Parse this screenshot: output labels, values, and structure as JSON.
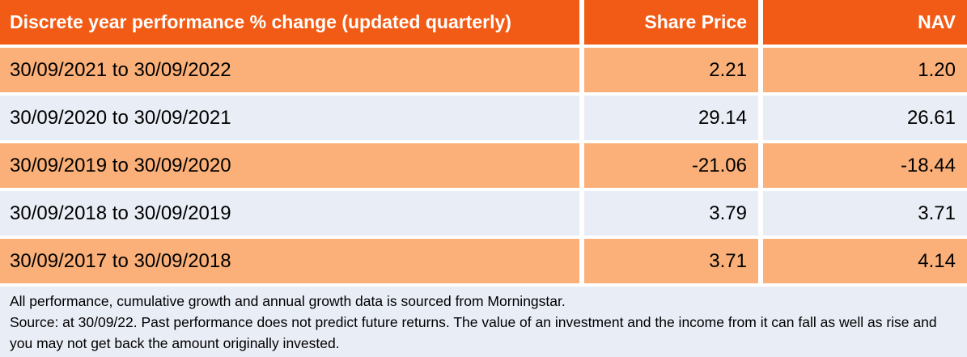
{
  "table": {
    "title": "Discrete year performance % change (updated quarterly)",
    "columns": {
      "share_price": "Share Price",
      "nav": "NAV"
    },
    "rows": [
      {
        "period": "30/09/2021 to 30/09/2022",
        "share_price": "2.21",
        "nav": "1.20"
      },
      {
        "period": "30/09/2020 to 30/09/2021",
        "share_price": "29.14",
        "nav": "26.61"
      },
      {
        "period": "30/09/2019 to 30/09/2020",
        "share_price": "-21.06",
        "nav": "-18.44"
      },
      {
        "period": "30/09/2018 to 30/09/2019",
        "share_price": "3.79",
        "nav": "3.71"
      },
      {
        "period": "30/09/2017 to 30/09/2018",
        "share_price": "3.71",
        "nav": "4.14"
      }
    ]
  },
  "footnote": {
    "line1": "All performance, cumulative growth and annual growth data is sourced from Morningstar.",
    "line2": "Source: at 30/09/22. Past performance does not predict future returns. The value of an investment and the income from it can fall as well as rise and you may not get back the amount originally invested."
  },
  "colors": {
    "header_bg": "#F25B15",
    "row_orange_bg": "#FAB078",
    "row_lavender_bg": "#E9EDF6",
    "header_text": "#FFFFFF",
    "body_text": "#000000"
  },
  "chart_data": {
    "type": "table",
    "title": "Discrete year performance % change (updated quarterly)",
    "columns": [
      "Discrete year performance % change (updated quarterly)",
      "Share Price",
      "NAV"
    ],
    "rows": [
      [
        "30/09/2021 to 30/09/2022",
        2.21,
        1.2
      ],
      [
        "30/09/2020 to 30/09/2021",
        29.14,
        26.61
      ],
      [
        "30/09/2019 to 30/09/2020",
        -21.06,
        -18.44
      ],
      [
        "30/09/2018 to 30/09/2019",
        3.79,
        3.71
      ],
      [
        "30/09/2017 to 30/09/2018",
        3.71,
        4.14
      ]
    ],
    "footnotes": [
      "All performance, cumulative growth and annual growth data is sourced from Morningstar.",
      "Source: at 30/09/22. Past performance does not predict future returns. The value of an investment and the income from it can fall as well as rise and you may not get back the amount originally invested."
    ]
  }
}
